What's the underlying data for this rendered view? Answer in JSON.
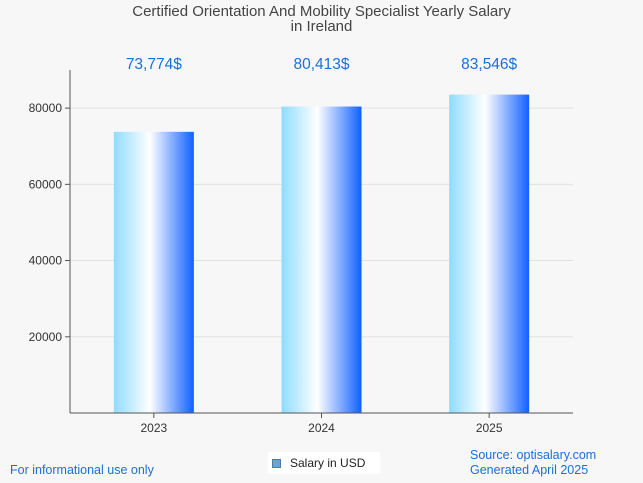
{
  "chart_data": {
    "type": "bar",
    "title_line1": "Certified Orientation And Mobility Specialist Yearly Salary",
    "title_line2": "in Ireland",
    "categories": [
      "2023",
      "2024",
      "2025"
    ],
    "values": [
      73774,
      80413,
      83546
    ],
    "value_labels": [
      "73,774$",
      "80,413$",
      "83,546$"
    ],
    "yticks": [
      20000,
      40000,
      60000,
      80000
    ],
    "ylim": [
      0,
      90000
    ],
    "legend_label": "Salary in USD",
    "grid": true
  },
  "footer": {
    "disclaimer": "For informational use only",
    "source": "Source: optisalary.com",
    "generated": "Generated April 2025"
  },
  "colors": {
    "label_blue": "#1a6fd8",
    "bar_light": "#8fdcff",
    "bar_white": "#ffffff",
    "bar_dark": "#1060ff",
    "axis": "#555555",
    "grid": "#e2e2e2"
  }
}
